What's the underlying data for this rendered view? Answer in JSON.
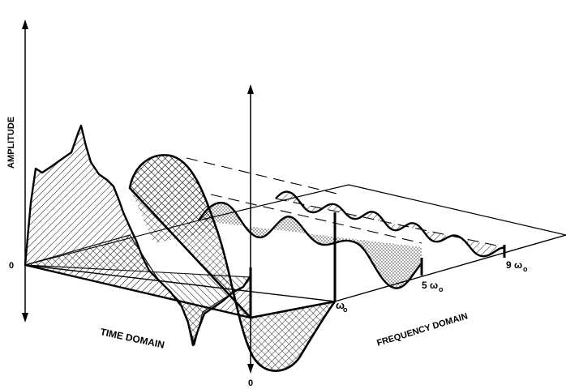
{
  "labels": {
    "amplitude": "AMPLITUDE",
    "zero_left": "0",
    "zero_bottom": "0",
    "time_domain": "TIME DOMAIN",
    "frequency_domain": "FREQUENCY DOMAIN",
    "omega_0": "ω",
    "omega_0_sub": "o",
    "five_omega_0": "5 ω",
    "five_omega_0_sub": "o",
    "nine_omega_0": "9 ω",
    "nine_omega_0_sub": "o"
  }
}
